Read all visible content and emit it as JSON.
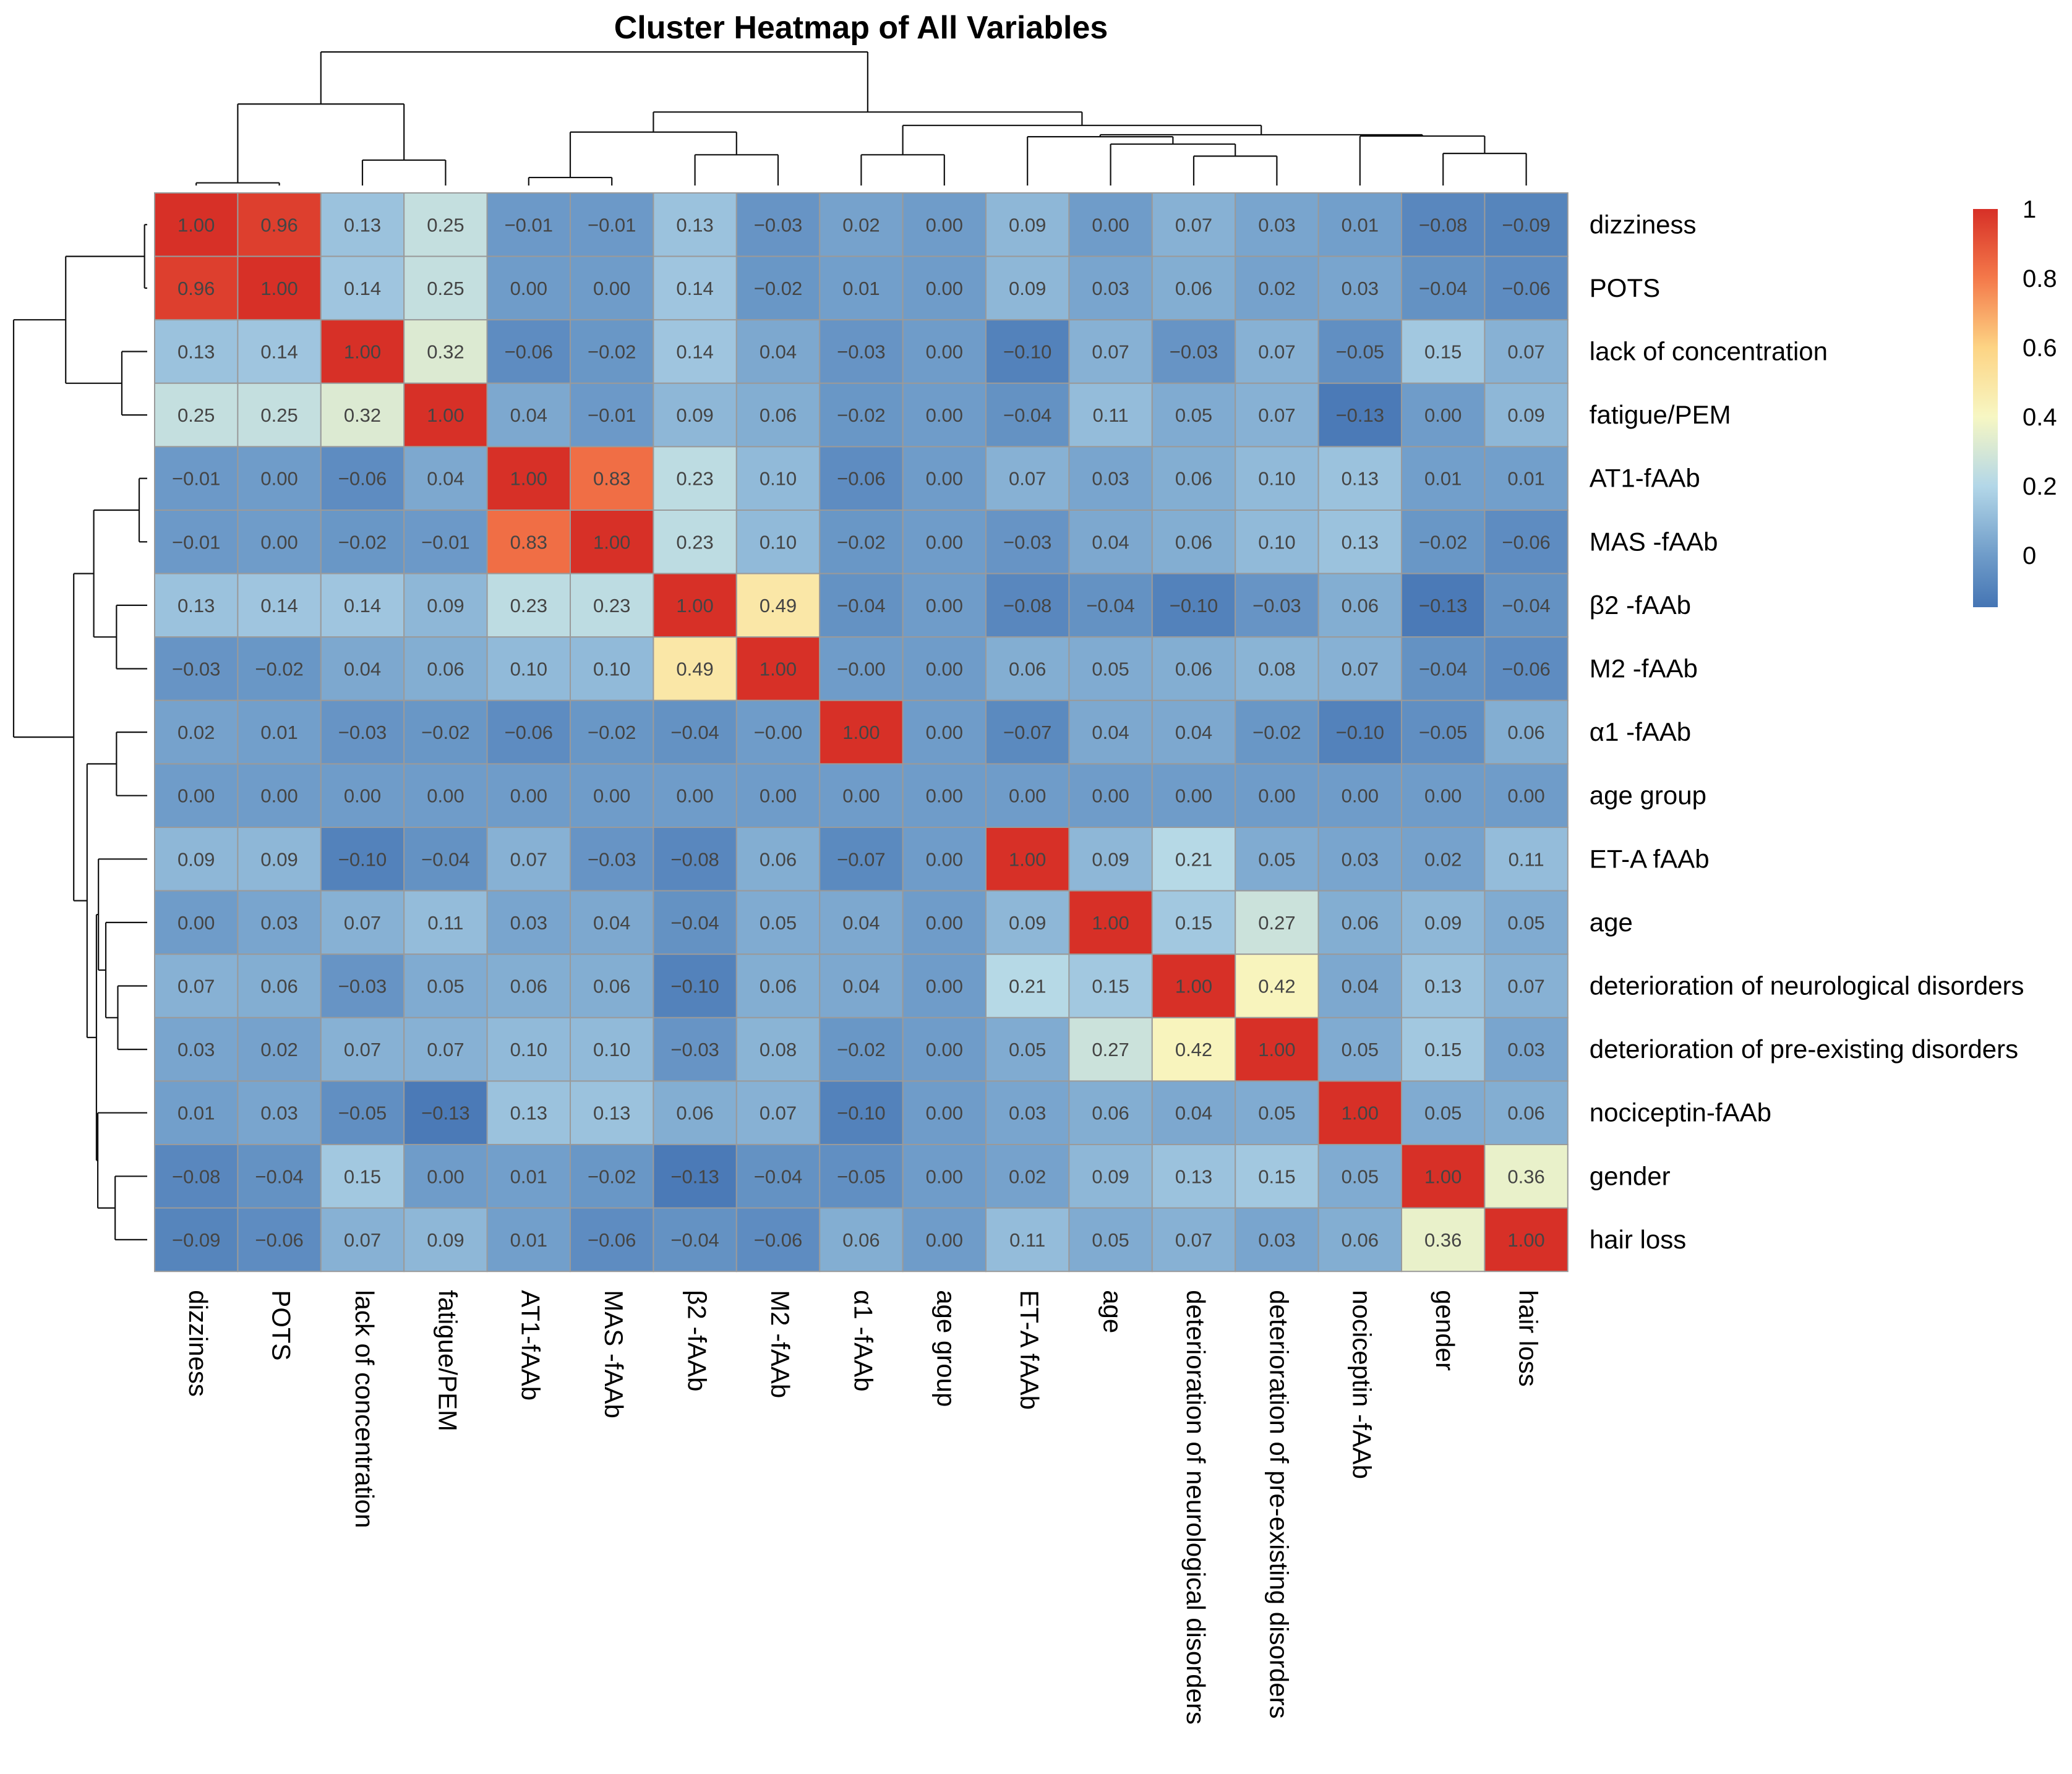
{
  "chart_data": {
    "type": "heatmap",
    "title": "Cluster Heatmap of All Variables",
    "rows": [
      "dizziness",
      "POTS",
      "lack of concentration",
      "fatigue/PEM",
      "AT1-fAAb",
      "MAS -fAAb",
      "β2 -fAAb",
      "M2 -fAAb",
      "α1 -fAAb",
      "age group",
      "ET-A fAAb",
      "age",
      "deterioration of neurological disorders",
      "deterioration of pre-existing disorders",
      "nociceptin-fAAb",
      "gender",
      "hair loss"
    ],
    "columns": [
      "dizziness",
      "POTS",
      "lack of concentration",
      "fatigue/PEM",
      "AT1-fAAb",
      "MAS -fAAb",
      "β2 -fAAb",
      "M2 -fAAb",
      "α1 -fAAb",
      "age group",
      "ET-A fAAb",
      "age",
      "deterioration of neurological disorders",
      "deterioration of pre-existing disorders",
      "nociceptin -fAAb",
      "gender",
      "hair loss"
    ],
    "values": [
      [
        1.0,
        0.96,
        0.13,
        0.25,
        -0.01,
        -0.01,
        0.13,
        -0.03,
        0.02,
        0.0,
        0.09,
        0.0,
        0.07,
        0.03,
        0.01,
        -0.08,
        -0.09
      ],
      [
        0.96,
        1.0,
        0.14,
        0.25,
        0.0,
        0.0,
        0.14,
        -0.02,
        0.01,
        0.0,
        0.09,
        0.03,
        0.06,
        0.02,
        0.03,
        -0.04,
        -0.06
      ],
      [
        0.13,
        0.14,
        1.0,
        0.32,
        -0.06,
        -0.02,
        0.14,
        0.04,
        -0.03,
        0.0,
        -0.1,
        0.07,
        -0.03,
        0.07,
        -0.05,
        0.15,
        0.07
      ],
      [
        0.25,
        0.25,
        0.32,
        1.0,
        0.04,
        -0.01,
        0.09,
        0.06,
        -0.02,
        0.0,
        -0.04,
        0.11,
        0.05,
        0.07,
        -0.13,
        0.0,
        0.09
      ],
      [
        -0.01,
        0.0,
        -0.06,
        0.04,
        1.0,
        0.83,
        0.23,
        0.1,
        -0.06,
        0.0,
        0.07,
        0.03,
        0.06,
        0.1,
        0.13,
        0.01,
        0.01
      ],
      [
        -0.01,
        0.0,
        -0.02,
        -0.01,
        0.83,
        1.0,
        0.23,
        0.1,
        -0.02,
        0.0,
        -0.03,
        0.04,
        0.06,
        0.1,
        0.13,
        -0.02,
        -0.06
      ],
      [
        0.13,
        0.14,
        0.14,
        0.09,
        0.23,
        0.23,
        1.0,
        0.49,
        -0.04,
        0.0,
        -0.08,
        -0.04,
        -0.1,
        -0.03,
        0.06,
        -0.13,
        -0.04
      ],
      [
        -0.03,
        -0.02,
        0.04,
        0.06,
        0.1,
        0.1,
        0.49,
        1.0,
        -0.0,
        0.0,
        0.06,
        0.05,
        0.06,
        0.08,
        0.07,
        -0.04,
        -0.06
      ],
      [
        0.02,
        0.01,
        -0.03,
        -0.02,
        -0.06,
        -0.02,
        -0.04,
        -0.0,
        1.0,
        0.0,
        -0.07,
        0.04,
        0.04,
        -0.02,
        -0.1,
        -0.05,
        0.06
      ],
      [
        0.0,
        0.0,
        0.0,
        0.0,
        0.0,
        0.0,
        0.0,
        0.0,
        0.0,
        0.0,
        0.0,
        0.0,
        0.0,
        0.0,
        0.0,
        0.0,
        0.0
      ],
      [
        0.09,
        0.09,
        -0.1,
        -0.04,
        0.07,
        -0.03,
        -0.08,
        0.06,
        -0.07,
        0.0,
        1.0,
        0.09,
        0.21,
        0.05,
        0.03,
        0.02,
        0.11
      ],
      [
        0.0,
        0.03,
        0.07,
        0.11,
        0.03,
        0.04,
        -0.04,
        0.05,
        0.04,
        0.0,
        0.09,
        1.0,
        0.15,
        0.27,
        0.06,
        0.09,
        0.05
      ],
      [
        0.07,
        0.06,
        -0.03,
        0.05,
        0.06,
        0.06,
        -0.1,
        0.06,
        0.04,
        0.0,
        0.21,
        0.15,
        1.0,
        0.42,
        0.04,
        0.13,
        0.07
      ],
      [
        0.03,
        0.02,
        0.07,
        0.07,
        0.1,
        0.1,
        -0.03,
        0.08,
        -0.02,
        0.0,
        0.05,
        0.27,
        0.42,
        1.0,
        0.05,
        0.15,
        0.03
      ],
      [
        0.01,
        0.03,
        -0.05,
        -0.13,
        0.13,
        0.13,
        0.06,
        0.07,
        -0.1,
        0.0,
        0.03,
        0.06,
        0.04,
        0.05,
        1.0,
        0.05,
        0.06
      ],
      [
        -0.08,
        -0.04,
        0.15,
        0.0,
        0.01,
        -0.02,
        -0.13,
        -0.04,
        -0.05,
        0.0,
        0.02,
        0.09,
        0.13,
        0.15,
        0.05,
        1.0,
        0.36
      ],
      [
        -0.09,
        -0.06,
        0.07,
        0.09,
        0.01,
        -0.06,
        -0.04,
        -0.06,
        0.06,
        0.0,
        0.11,
        0.05,
        0.07,
        0.03,
        0.06,
        0.36,
        1.0
      ]
    ],
    "color_scale": {
      "min": -0.15,
      "max": 1.0,
      "ticks": [
        1,
        0.8,
        0.6,
        0.4,
        0.2,
        0
      ],
      "stops": [
        {
          "value": -0.15,
          "color": "#4575b4"
        },
        {
          "value": 0.0,
          "color": "#6f9cc9"
        },
        {
          "value": 0.2,
          "color": "#b3d7e8"
        },
        {
          "value": 0.4,
          "color": "#f7f7c3"
        },
        {
          "value": 0.6,
          "color": "#fdd484"
        },
        {
          "value": 0.8,
          "color": "#f4794a"
        },
        {
          "value": 1.0,
          "color": "#d73027"
        }
      ]
    },
    "legend_position": "top-right",
    "cell_label_format": "2 decimals, unicode minus"
  }
}
